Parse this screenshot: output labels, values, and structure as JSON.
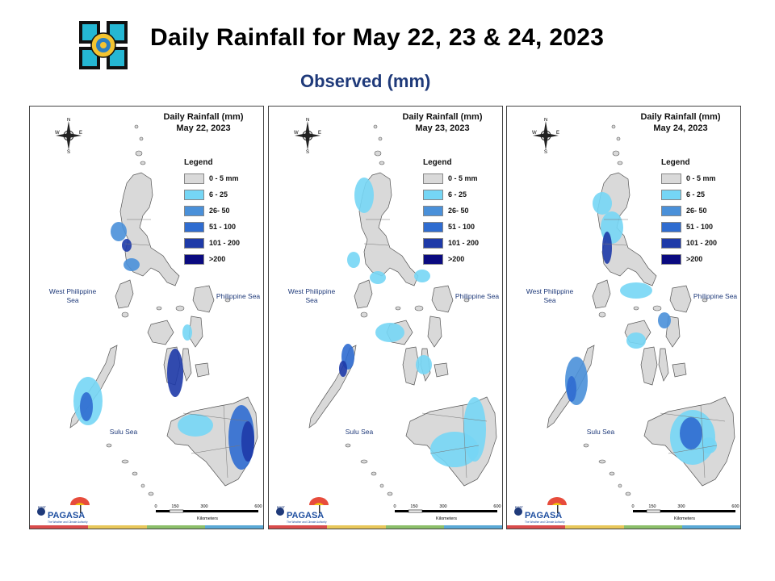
{
  "header": {
    "title": "Daily Rainfall for May 22, 23 & 24, 2023",
    "subtitle": "Observed (mm)"
  },
  "legend": {
    "title": "Legend",
    "classes": [
      {
        "label": "0 - 5 mm",
        "color": "#d9d9d9"
      },
      {
        "label": "6 - 25",
        "color": "#75d6f5"
      },
      {
        "label": "26- 50",
        "color": "#4a90d9"
      },
      {
        "label": "51 - 100",
        "color": "#2f6cd0"
      },
      {
        "label": "101 - 200",
        "color": "#1e3aa8"
      },
      {
        "label": ">200",
        "color": "#0a0a80"
      }
    ]
  },
  "panels": [
    {
      "title_line1": "Daily Rainfall (mm)",
      "title_line2": "May 22, 2023"
    },
    {
      "title_line1": "Daily Rainfall (mm)",
      "title_line2": "May 23, 2023"
    },
    {
      "title_line1": "Daily Rainfall (mm)",
      "title_line2": "May 24, 2023"
    }
  ],
  "seas": {
    "west": "West Philippine Sea",
    "east": "Philippine Sea",
    "sulu": "Sulu Sea"
  },
  "compass": {
    "n": "N",
    "s": "S",
    "e": "E",
    "w": "W"
  },
  "scale": {
    "ticks": [
      "0",
      "150",
      "300",
      "600"
    ],
    "unit": "Kilometers"
  },
  "branding": {
    "dost": "DOST",
    "name": "PAGASA",
    "tagline": "The Weather and Climate Authority"
  },
  "colors": {
    "land": "#d9d9d9",
    "outline": "#555555",
    "strip": [
      "#d94b4b",
      "#e8c75a",
      "#8cbf6a",
      "#5aa9d6"
    ]
  }
}
